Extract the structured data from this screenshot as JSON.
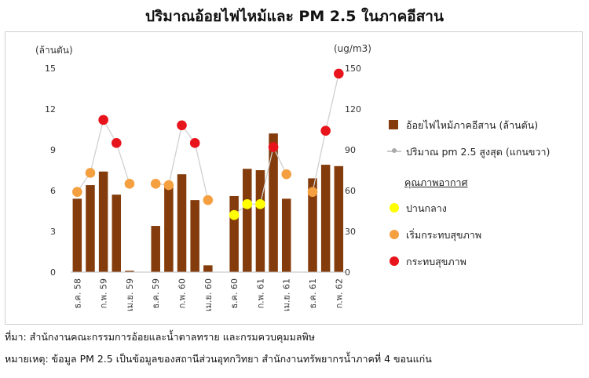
{
  "title": "ปริมาณอ้อยไฟไหม้และ PM 2.5 ในภาคอีสาน",
  "legend": {
    "bar_label": "อ้อยไฟไหม้ภาคอีสาน (ล้านตัน)",
    "line_label": "ปริมาณ pm 2.5 สูงสุด (แกนขวา)",
    "quality_heading": "คุณภาพอากาศ",
    "quality": [
      {
        "label": "ปานกลาง",
        "color": "#ffff00"
      },
      {
        "label": "เริ่มกระทบสุขภาพ",
        "color": "#f5a040"
      },
      {
        "label": "กระทบสุขภาพ",
        "color": "#e8141c"
      }
    ]
  },
  "notes": {
    "source": "ที่มา: สำนักงานคณะกรรมการอ้อยและน้ำตาลทราย และกรมควบคุมมลพิษ",
    "remark": "หมายเหตุ: ข้อมูล PM 2.5 เป็นข้อมูลของสถานีส่วนอุทกวิทยา สำนักงานทรัพยากรน้ำภาคที่ 4 ขอนแก่น"
  },
  "colors": {
    "bar": "#843c0c",
    "line": "#d0d0d0",
    "moderate": "#ffff00",
    "starting": "#f5a040",
    "unhealthy": "#e8141c"
  },
  "chart_data": {
    "type": "bar+line",
    "left_axis": {
      "label": "(ล้านตัน)",
      "ylim": [
        0,
        15
      ],
      "ticks": [
        0,
        3,
        6,
        9,
        12,
        15
      ]
    },
    "right_axis": {
      "label": "(ug/m3)",
      "ylim": [
        0,
        150
      ],
      "ticks": [
        0,
        30,
        60,
        90,
        120,
        150
      ]
    },
    "x_labels": [
      "ธ.ค. 58",
      "",
      "ก.พ. 59",
      "",
      "เม.ย. 59",
      "",
      "ธ.ค. 59",
      "",
      "ก.พ. 60",
      "",
      "เม.ย. 60",
      "",
      "ธ.ค. 60",
      "",
      "ก.พ. 61",
      "",
      "เม.ย. 61",
      "",
      "ธ.ค. 61",
      "",
      "ก.พ. 62"
    ],
    "bars": [
      5.4,
      6.4,
      7.4,
      5.7,
      0.1,
      null,
      3.4,
      6.4,
      7.2,
      5.3,
      0.5,
      null,
      5.6,
      7.6,
      7.5,
      10.2,
      5.4,
      null,
      6.9,
      7.9,
      7.8
    ],
    "pm25_segments": [
      [
        {
          "i": 0,
          "v": 59,
          "q": "starting"
        },
        {
          "i": 1,
          "v": 73,
          "q": "starting"
        },
        {
          "i": 2,
          "v": 112,
          "q": "unhealthy"
        },
        {
          "i": 3,
          "v": 95,
          "q": "unhealthy"
        },
        {
          "i": 4,
          "v": 65,
          "q": "starting"
        }
      ],
      [
        {
          "i": 6,
          "v": 65,
          "q": "starting"
        },
        {
          "i": 7,
          "v": 64,
          "q": "starting"
        },
        {
          "i": 8,
          "v": 108,
          "q": "unhealthy"
        },
        {
          "i": 9,
          "v": 95,
          "q": "unhealthy"
        },
        {
          "i": 10,
          "v": 53,
          "q": "starting"
        }
      ],
      [
        {
          "i": 12,
          "v": 42,
          "q": "moderate"
        },
        {
          "i": 13,
          "v": 50,
          "q": "moderate"
        },
        {
          "i": 14,
          "v": 50,
          "q": "moderate"
        },
        {
          "i": 15,
          "v": 92,
          "q": "unhealthy"
        },
        {
          "i": 16,
          "v": 72,
          "q": "starting"
        }
      ],
      [
        {
          "i": 18,
          "v": 59,
          "q": "starting"
        },
        {
          "i": 19,
          "v": 104,
          "q": "unhealthy"
        },
        {
          "i": 20,
          "v": 146,
          "q": "unhealthy"
        }
      ]
    ]
  }
}
